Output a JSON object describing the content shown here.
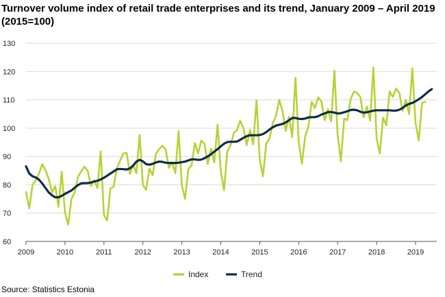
{
  "title": "Turnover volume index of retail trade enterprises and its trend, January 2009 – April 2019 (2015=100)",
  "source": "Source: Statistics Estonia",
  "chart_data": {
    "type": "line",
    "title": "Turnover volume index of retail trade enterprises and its trend, January 2009 – April 2019 (2015=100)",
    "xlabel": "",
    "ylabel": "",
    "ylim": [
      60,
      130
    ],
    "yticks": [
      60,
      70,
      80,
      90,
      100,
      110,
      120,
      130
    ],
    "xticks": [
      "2009",
      "2010",
      "2011",
      "2012",
      "2013",
      "2014",
      "2015",
      "2016",
      "2017",
      "2018",
      "2019"
    ],
    "x_start": "2009-01",
    "x_end": "2019-04",
    "frequency": "monthly",
    "grid": true,
    "legend_position": "bottom",
    "series": [
      {
        "name": "Index",
        "color": "#b5d334",
        "values": [
          77.5,
          71.7,
          79.9,
          81.6,
          84.0,
          87.3,
          85.2,
          82.1,
          77.3,
          79.5,
          72.2,
          84.6,
          70.3,
          65.9,
          75.0,
          77.3,
          82.8,
          84.8,
          86.4,
          85.0,
          79.6,
          81.5,
          78.9,
          91.8,
          69.3,
          67.4,
          78.7,
          79.4,
          85.8,
          88.6,
          91.1,
          91.3,
          83.8,
          87.0,
          84.1,
          97.6,
          80.0,
          78.2,
          85.8,
          83.4,
          90.9,
          92.6,
          93.8,
          92.6,
          86.0,
          88.0,
          84.1,
          99.0,
          79.9,
          75.0,
          85.6,
          86.8,
          94.7,
          91.1,
          95.6,
          94.4,
          87.4,
          92.8,
          87.9,
          101.2,
          84.9,
          78.1,
          91.7,
          93.9,
          98.3,
          99.4,
          102.6,
          100.0,
          94.0,
          99.4,
          94.3,
          109.9,
          89.0,
          83.0,
          94.5,
          96.4,
          101.7,
          104.3,
          110.0,
          106.1,
          99.1,
          104.0,
          96.9,
          117.8,
          95.1,
          87.5,
          97.1,
          100.5,
          109.3,
          107.1,
          110.9,
          109.4,
          102.8,
          106.7,
          102.4,
          120.3,
          97.5,
          88.3,
          103.4,
          102.8,
          110.3,
          112.9,
          112.5,
          111.0,
          103.8,
          107.6,
          102.7,
          121.4,
          96.4,
          91.0,
          103.7,
          101.0,
          113.0,
          111.0,
          114.0,
          112.5,
          106.1,
          110.0,
          105.0,
          121.1,
          101.8,
          95.7,
          109.0,
          109.3
        ]
      },
      {
        "name": "Trend",
        "color": "#0d2b45",
        "values": [
          86.5,
          84.0,
          83.0,
          82.6,
          81.8,
          80.5,
          78.9,
          77.3,
          76.3,
          75.6,
          75.6,
          76.1,
          76.8,
          77.4,
          78.0,
          79.0,
          79.9,
          80.5,
          80.6,
          80.6,
          80.8,
          81.2,
          81.4,
          81.9,
          82.5,
          83.2,
          84.0,
          84.7,
          85.5,
          85.6,
          85.5,
          85.4,
          85.8,
          86.8,
          88.2,
          88.8,
          88.3,
          87.3,
          87.1,
          87.4,
          87.9,
          88.2,
          88.1,
          87.8,
          87.7,
          87.7,
          87.7,
          87.8,
          88.0,
          88.2,
          88.6,
          89.0,
          89.0,
          88.8,
          88.9,
          89.4,
          90.0,
          90.8,
          91.7,
          92.6,
          93.6,
          94.5,
          95.1,
          95.2,
          95.2,
          95.3,
          95.9,
          96.6,
          97.2,
          97.5,
          97.5,
          97.5,
          97.6,
          97.9,
          98.6,
          99.5,
          100.3,
          100.9,
          101.2,
          101.5,
          102.0,
          102.8,
          103.6,
          103.6,
          103.3,
          103.2,
          103.4,
          103.8,
          103.9,
          103.9,
          104.2,
          104.8,
          105.2,
          105.7,
          105.7,
          105.5,
          105.2,
          105.3,
          105.6,
          106.0,
          106.4,
          106.5,
          106.3,
          105.8,
          105.5,
          105.6,
          105.9,
          106.2,
          106.3,
          106.3,
          106.3,
          106.3,
          106.3,
          106.2,
          106.2,
          106.5,
          107.1,
          108.0,
          108.6,
          108.9,
          109.5,
          110.2,
          111.0,
          112.0,
          113.0,
          113.8
        ]
      }
    ]
  }
}
